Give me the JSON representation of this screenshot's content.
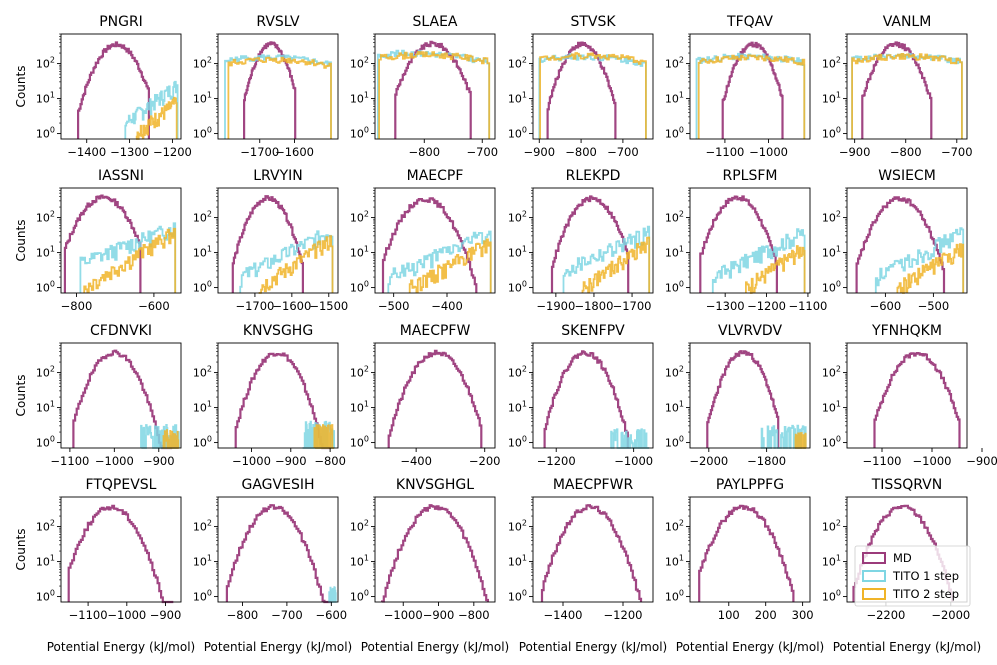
{
  "figure": {
    "xlabel": "Potential Energy (kJ/mol)",
    "ylabel": "Counts",
    "legend": {
      "placement": "bottom-right",
      "entries": [
        {
          "name": "MD",
          "color": "#9b3b7b"
        },
        {
          "name": "TITO 1 step",
          "color": "#7fd6e3"
        },
        {
          "name": "TITO 2 step",
          "color": "#f0b429"
        }
      ]
    }
  },
  "chart_data": [
    {
      "type": "area",
      "title": "PNGRI",
      "x_ticks": [
        -1400,
        -1300,
        -1200
      ],
      "xlim": [
        -1460,
        -1180
      ],
      "y_scale": "log",
      "y_ticks": [
        "10^0",
        "10^1",
        "10^2"
      ],
      "series": [
        {
          "name": "MD",
          "center": -1330,
          "sigma": 30,
          "peak": 350,
          "low": -1420,
          "high": -1255
        },
        {
          "name": "TITO 1 step",
          "kind": "rise",
          "low": -1310,
          "high": -1188,
          "start": 2,
          "end": 25
        },
        {
          "name": "TITO 2 step",
          "kind": "rise",
          "low": -1285,
          "high": -1190,
          "start": 1,
          "end": 8
        }
      ]
    },
    {
      "type": "area",
      "title": "RVSLV",
      "x_ticks": [
        -1700,
        -1600
      ],
      "xlim": [
        -1820,
        -1475
      ],
      "y_scale": "log",
      "y_ticks": [
        "10^0",
        "10^1",
        "10^2"
      ],
      "series": [
        {
          "name": "MD",
          "center": -1668,
          "sigma": 28,
          "peak": 360,
          "low": -1745,
          "high": -1598
        },
        {
          "name": "TITO 1 step",
          "kind": "flat",
          "low": -1800,
          "high": -1495,
          "mid": -1680,
          "peak": 150,
          "edge": 15
        },
        {
          "name": "TITO 2 step",
          "kind": "flat",
          "low": -1790,
          "high": -1495,
          "mid": -1660,
          "peak": 130,
          "edge": 8
        }
      ]
    },
    {
      "type": "area",
      "title": "SLAEA",
      "x_ticks": [
        -800,
        -700
      ],
      "xlim": [
        -885,
        -678
      ],
      "y_scale": "log",
      "y_ticks": [
        "10^0",
        "10^1",
        "10^2"
      ],
      "series": [
        {
          "name": "MD",
          "center": -785,
          "sigma": 25,
          "peak": 370,
          "low": -850,
          "high": -720
        },
        {
          "name": "TITO 1 step",
          "kind": "flat",
          "low": -880,
          "high": -688,
          "mid": -820,
          "peak": 200,
          "edge": 25
        },
        {
          "name": "TITO 2 step",
          "kind": "flat",
          "low": -878,
          "high": -688,
          "mid": -800,
          "peak": 180,
          "edge": 20
        }
      ]
    },
    {
      "type": "area",
      "title": "STVSK",
      "x_ticks": [
        -900,
        -800,
        -700
      ],
      "xlim": [
        -915,
        -628
      ],
      "y_scale": "log",
      "y_ticks": [
        "10^0",
        "10^1",
        "10^2"
      ],
      "series": [
        {
          "name": "MD",
          "center": -798,
          "sigma": 28,
          "peak": 360,
          "low": -880,
          "high": -718
        },
        {
          "name": "TITO 1 step",
          "kind": "flat",
          "low": -900,
          "high": -645,
          "mid": -800,
          "peak": 160,
          "edge": 18
        },
        {
          "name": "TITO 2 step",
          "kind": "flat",
          "low": -898,
          "high": -645,
          "mid": -790,
          "peak": 170,
          "edge": 14
        }
      ]
    },
    {
      "type": "area",
      "title": "TFQAV",
      "x_ticks": [
        -1100,
        -1000
      ],
      "xlim": [
        -1180,
        -905
      ],
      "y_scale": "log",
      "y_ticks": [
        "10^0",
        "10^1",
        "10^2"
      ],
      "series": [
        {
          "name": "MD",
          "center": -1035,
          "sigma": 25,
          "peak": 360,
          "low": -1105,
          "high": -968
        },
        {
          "name": "TITO 1 step",
          "kind": "flat",
          "low": -1165,
          "high": -918,
          "mid": -1050,
          "peak": 160,
          "edge": 20
        },
        {
          "name": "TITO 2 step",
          "kind": "flat",
          "low": -1160,
          "high": -918,
          "mid": -1040,
          "peak": 150,
          "edge": 10
        }
      ]
    },
    {
      "type": "area",
      "title": "VANLM",
      "x_ticks": [
        -900,
        -800,
        -700
      ],
      "xlim": [
        -915,
        -680
      ],
      "y_scale": "log",
      "y_ticks": [
        "10^0",
        "10^1",
        "10^2"
      ],
      "series": [
        {
          "name": "MD",
          "center": -818,
          "sigma": 25,
          "peak": 360,
          "low": -885,
          "high": -750
        },
        {
          "name": "TITO 1 step",
          "kind": "flat",
          "low": -905,
          "high": -690,
          "mid": -810,
          "peak": 170,
          "edge": 20
        },
        {
          "name": "TITO 2 step",
          "kind": "flat",
          "low": -905,
          "high": -690,
          "mid": -800,
          "peak": 160,
          "edge": 12
        }
      ]
    },
    {
      "type": "area",
      "title": "IASSNI",
      "x_ticks": [
        -800,
        -600
      ],
      "xlim": [
        -840,
        -530
      ],
      "y_scale": "log",
      "y_ticks": [
        "10^0",
        "10^1",
        "10^2"
      ],
      "series": [
        {
          "name": "MD",
          "center": -730,
          "sigma": 38,
          "peak": 380,
          "low": -830,
          "high": -635
        },
        {
          "name": "TITO 1 step",
          "kind": "rise",
          "low": -790,
          "high": -545,
          "start": 5,
          "end": 55
        },
        {
          "name": "TITO 2 step",
          "kind": "rise",
          "low": -780,
          "high": -545,
          "start": 1,
          "end": 40
        }
      ]
    },
    {
      "type": "area",
      "title": "LRVYIN",
      "x_ticks": [
        -1700,
        -1600,
        -1500
      ],
      "xlim": [
        -1800,
        -1475
      ],
      "y_scale": "log",
      "y_ticks": [
        "10^0",
        "10^1",
        "10^2"
      ],
      "series": [
        {
          "name": "MD",
          "center": -1665,
          "sigma": 32,
          "peak": 360,
          "low": -1760,
          "high": -1570
        },
        {
          "name": "TITO 1 step",
          "kind": "rise",
          "low": -1740,
          "high": -1490,
          "start": 2,
          "end": 45
        },
        {
          "name": "TITO 2 step",
          "kind": "rise",
          "low": -1690,
          "high": -1490,
          "start": 1,
          "end": 25
        }
      ]
    },
    {
      "type": "area",
      "title": "MAECPF",
      "x_ticks": [
        -500,
        -400
      ],
      "xlim": [
        -535,
        -310
      ],
      "y_scale": "log",
      "y_ticks": [
        "10^0",
        "10^1",
        "10^2"
      ],
      "series": [
        {
          "name": "MD",
          "center": -440,
          "sigma": 28,
          "peak": 340,
          "low": -520,
          "high": -345
        },
        {
          "name": "TITO 1 step",
          "kind": "rise",
          "low": -510,
          "high": -318,
          "start": 2,
          "end": 40
        },
        {
          "name": "TITO 2 step",
          "kind": "rise",
          "low": -470,
          "high": -318,
          "start": 1,
          "end": 20
        }
      ]
    },
    {
      "type": "area",
      "title": "RLEKPD",
      "x_ticks": [
        -1900,
        -1800,
        -1700
      ],
      "xlim": [
        -1960,
        -1645
      ],
      "y_scale": "log",
      "y_ticks": [
        "10^0",
        "10^1",
        "10^2"
      ],
      "series": [
        {
          "name": "MD",
          "center": -1805,
          "sigma": 35,
          "peak": 350,
          "low": -1910,
          "high": -1710
        },
        {
          "name": "TITO 1 step",
          "kind": "rise",
          "low": -1880,
          "high": -1655,
          "start": 3,
          "end": 40
        },
        {
          "name": "TITO 2 step",
          "kind": "rise",
          "low": -1830,
          "high": -1655,
          "start": 1,
          "end": 20
        }
      ]
    },
    {
      "type": "area",
      "title": "RPLSFM",
      "x_ticks": [
        -1300,
        -1200,
        -1100
      ],
      "xlim": [
        -1385,
        -1095
      ],
      "y_scale": "log",
      "y_ticks": [
        "10^0",
        "10^1",
        "10^2"
      ],
      "series": [
        {
          "name": "MD",
          "center": -1270,
          "sigma": 32,
          "peak": 380,
          "low": -1360,
          "high": -1175
        },
        {
          "name": "TITO 1 step",
          "kind": "rise",
          "low": -1330,
          "high": -1108,
          "start": 2,
          "end": 40
        },
        {
          "name": "TITO 2 step",
          "kind": "rise",
          "low": -1250,
          "high": -1108,
          "start": 1,
          "end": 15
        }
      ]
    },
    {
      "type": "area",
      "title": "WSIECM",
      "x_ticks": [
        -600,
        -500
      ],
      "xlim": [
        -680,
        -430
      ],
      "y_scale": "log",
      "y_ticks": [
        "10^0",
        "10^1",
        "10^2"
      ],
      "series": [
        {
          "name": "MD",
          "center": -570,
          "sigma": 30,
          "peak": 350,
          "low": -660,
          "high": -478
        },
        {
          "name": "TITO 1 step",
          "kind": "rise",
          "low": -620,
          "high": -438,
          "start": 2,
          "end": 40
        },
        {
          "name": "TITO 2 step",
          "kind": "rise",
          "low": -575,
          "high": -438,
          "start": 1,
          "end": 15
        }
      ]
    },
    {
      "type": "area",
      "title": "CFDNVKI",
      "x_ticks": [
        -1100,
        -1000,
        -900
      ],
      "xlim": [
        -1120,
        -850
      ],
      "y_scale": "log",
      "y_ticks": [
        "10^0",
        "10^1",
        "10^2"
      ],
      "series": [
        {
          "name": "MD",
          "center": -1000,
          "sigma": 30,
          "peak": 380,
          "low": -1092,
          "high": -870
        },
        {
          "name": "TITO 1 step",
          "kind": "tail",
          "low": -940,
          "high": -855,
          "level": 2
        },
        {
          "name": "TITO 2 step",
          "kind": "tail",
          "low": -890,
          "high": -855,
          "level": 1.5
        }
      ]
    },
    {
      "type": "area",
      "title": "KNVSGHG",
      "x_ticks": [
        -1000,
        -900,
        -800
      ],
      "xlim": [
        -1085,
        -780
      ],
      "y_scale": "log",
      "y_ticks": [
        "10^0",
        "10^1",
        "10^2"
      ],
      "series": [
        {
          "name": "MD",
          "center": -935,
          "sigma": 33,
          "peak": 370,
          "low": -1040,
          "high": -800
        },
        {
          "name": "TITO 1 step",
          "kind": "tail",
          "low": -870,
          "high": -790,
          "level": 2.5
        },
        {
          "name": "TITO 2 step",
          "kind": "tail",
          "low": -840,
          "high": -790,
          "level": 2
        }
      ]
    },
    {
      "type": "area",
      "title": "MAECPFW",
      "x_ticks": [
        -400,
        -200
      ],
      "xlim": [
        -520,
        -170
      ],
      "y_scale": "log",
      "y_ticks": [
        "10^0",
        "10^1",
        "10^2"
      ],
      "series": [
        {
          "name": "MD",
          "center": -340,
          "sigma": 42,
          "peak": 370,
          "low": -480,
          "high": -210
        }
      ]
    },
    {
      "type": "area",
      "title": "SKENFPV",
      "x_ticks": [
        -1200,
        -1000
      ],
      "xlim": [
        -1260,
        -950
      ],
      "y_scale": "log",
      "y_ticks": [
        "10^0",
        "10^1",
        "10^2"
      ],
      "series": [
        {
          "name": "MD",
          "center": -1125,
          "sigma": 33,
          "peak": 370,
          "low": -1230,
          "high": -1015
        },
        {
          "name": "TITO 1 step",
          "kind": "tail",
          "low": -1060,
          "high": -960,
          "level": 1.5
        }
      ]
    },
    {
      "type": "area",
      "title": "VLVRVDV",
      "x_ticks": [
        -2000,
        -1800
      ],
      "xlim": [
        -2065,
        -1650
      ],
      "y_scale": "log",
      "y_ticks": [
        "10^0",
        "10^1",
        "10^2"
      ],
      "series": [
        {
          "name": "MD",
          "center": -1880,
          "sigma": 40,
          "peak": 380,
          "low": -2005,
          "high": -1760
        },
        {
          "name": "TITO 1 step",
          "kind": "tail",
          "low": -1820,
          "high": -1665,
          "level": 2
        },
        {
          "name": "TITO 2 step",
          "kind": "tail",
          "low": -1700,
          "high": -1665,
          "level": 1.3
        }
      ]
    },
    {
      "type": "area",
      "title": "YFNHQKM",
      "x_ticks": [
        -1100,
        -1000,
        -900
      ],
      "xlim": [
        -1170,
        -930
      ],
      "y_scale": "log",
      "y_ticks": [
        "10^0",
        "10^1",
        "10^2"
      ],
      "series": [
        {
          "name": "MD",
          "center": -1030,
          "sigma": 28,
          "peak": 360,
          "low": -1115,
          "high": -945
        }
      ]
    },
    {
      "type": "area",
      "title": "FTQPEVSL",
      "x_ticks": [
        -1100,
        -1000,
        -900
      ],
      "xlim": [
        -1170,
        -860
      ],
      "y_scale": "log",
      "y_ticks": [
        "10^0",
        "10^1",
        "10^2"
      ],
      "series": [
        {
          "name": "MD",
          "center": -1040,
          "sigma": 38,
          "peak": 360,
          "low": -1150,
          "high": -880
        }
      ]
    },
    {
      "type": "area",
      "title": "GAGVESIH",
      "x_ticks": [
        -800,
        -700,
        -600
      ],
      "xlim": [
        -855,
        -585
      ],
      "y_scale": "log",
      "y_ticks": [
        "10^0",
        "10^1",
        "10^2"
      ],
      "series": [
        {
          "name": "MD",
          "center": -730,
          "sigma": 32,
          "peak": 360,
          "low": -835,
          "high": -600
        },
        {
          "name": "TITO 1 step",
          "kind": "tail",
          "low": -605,
          "high": -590,
          "level": 1.2
        }
      ]
    },
    {
      "type": "area",
      "title": "KNVSGHGL",
      "x_ticks": [
        -1000,
        -900,
        -800
      ],
      "xlim": [
        -1080,
        -740
      ],
      "y_scale": "log",
      "y_ticks": [
        "10^0",
        "10^1",
        "10^2"
      ],
      "series": [
        {
          "name": "MD",
          "center": -910,
          "sigma": 42,
          "peak": 370,
          "low": -1060,
          "high": -760
        }
      ]
    },
    {
      "type": "area",
      "title": "MAECPFWR",
      "x_ticks": [
        -1400,
        -1200
      ],
      "xlim": [
        -1500,
        -1100
      ],
      "y_scale": "log",
      "y_ticks": [
        "10^0",
        "10^1",
        "10^2"
      ],
      "series": [
        {
          "name": "MD",
          "center": -1310,
          "sigma": 48,
          "peak": 370,
          "low": -1470,
          "high": -1140
        }
      ]
    },
    {
      "type": "area",
      "title": "PAYLPPFG",
      "x_ticks": [
        100,
        200,
        300
      ],
      "xlim": [
        -5,
        320
      ],
      "y_scale": "log",
      "y_ticks": [
        "10^0",
        "10^1",
        "10^2"
      ],
      "series": [
        {
          "name": "MD",
          "center": 140,
          "sigma": 40,
          "peak": 370,
          "low": 20,
          "high": 275
        }
      ]
    },
    {
      "type": "area",
      "title": "TISSQRVN",
      "x_ticks": [
        -2200,
        -2000
      ],
      "xlim": [
        -2320,
        -1950
      ],
      "y_scale": "log",
      "y_ticks": [
        "10^0",
        "10^1",
        "10^2"
      ],
      "series": [
        {
          "name": "MD",
          "center": -2150,
          "sigma": 45,
          "peak": 370,
          "low": -2300,
          "high": -1995
        }
      ]
    }
  ]
}
